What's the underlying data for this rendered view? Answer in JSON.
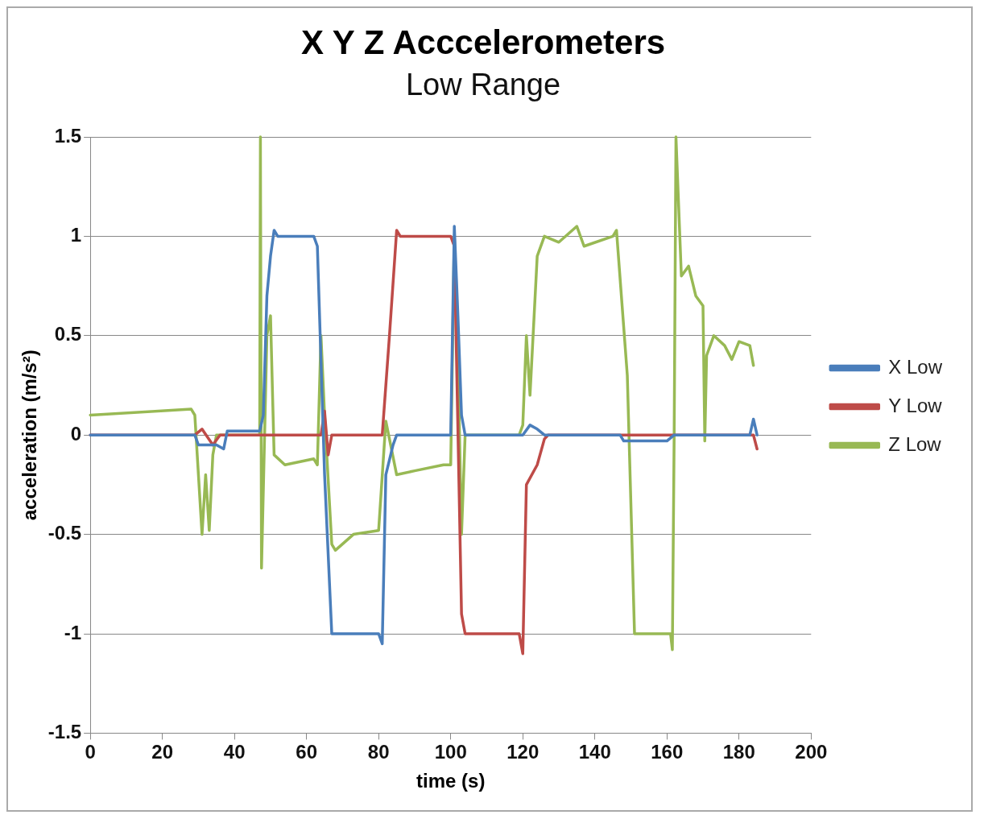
{
  "chart_data": {
    "type": "line",
    "title": "X Y Z Acccelerometers",
    "subtitle": "Low Range",
    "xlabel": "time (s)",
    "ylabel": "acceleration (m/s²)",
    "xlim": [
      0,
      200
    ],
    "xticks": [
      0,
      20,
      40,
      60,
      80,
      100,
      120,
      140,
      160,
      180,
      200
    ],
    "ylim": [
      -1.5,
      1.5
    ],
    "yticks": [
      -1.5,
      -1,
      -0.5,
      0,
      0.5,
      1,
      1.5
    ],
    "grid": "y",
    "legend": "right",
    "marker": "none",
    "line_style": "solid",
    "series": [
      {
        "name": "X Low",
        "color": "#4a7ebb",
        "x": [
          0,
          29,
          30,
          33,
          35,
          37,
          38,
          45,
          47,
          48,
          49,
          50,
          51,
          52,
          62,
          63,
          65,
          67,
          68,
          80,
          81,
          82,
          84,
          85,
          100,
          101,
          102,
          103,
          104,
          120,
          122,
          124,
          126,
          147,
          148,
          160,
          162,
          183,
          184,
          185
        ],
        "values": [
          0,
          0,
          -0.05,
          -0.05,
          -0.05,
          -0.07,
          0.02,
          0.02,
          0.02,
          0.1,
          0.7,
          0.9,
          1.03,
          1,
          1,
          0.95,
          -0.2,
          -1,
          -1,
          -1,
          -1.05,
          -0.2,
          -0.05,
          0,
          0,
          1.05,
          0.6,
          0.1,
          0,
          0,
          0.05,
          0.03,
          0,
          0,
          -0.03,
          -0.03,
          0,
          0,
          0.08,
          0
        ]
      },
      {
        "name": "Y Low",
        "color": "#be4b48",
        "x": [
          0,
          29,
          31,
          34,
          36,
          47,
          64,
          65,
          66,
          67,
          80,
          81,
          83,
          85,
          86,
          100,
          101,
          103,
          104,
          119,
          120,
          121,
          124,
          126,
          127,
          184,
          185
        ],
        "values": [
          0,
          0,
          0.03,
          -0.05,
          0,
          0,
          0,
          0.12,
          -0.1,
          0,
          0,
          0,
          0.5,
          1.03,
          1,
          1,
          0.95,
          -0.9,
          -1,
          -1,
          -1.1,
          -0.25,
          -0.15,
          -0.02,
          0,
          0,
          -0.07
        ]
      },
      {
        "name": "Z Low",
        "color": "#98b954",
        "x": [
          0,
          28,
          29,
          31,
          32,
          33,
          34,
          35,
          37,
          47,
          47.2,
          47.5,
          49,
          50,
          51,
          54,
          62,
          63,
          64,
          65,
          67,
          68,
          73,
          80,
          82,
          85,
          90,
          98,
          100,
          101,
          102,
          103,
          104,
          119,
          120,
          121,
          122,
          124,
          126,
          130,
          135,
          137,
          145,
          146,
          149,
          151,
          161,
          161.5,
          162,
          162.5,
          164,
          166,
          168,
          170,
          170.5,
          171,
          173,
          176,
          178,
          180,
          183,
          184
        ],
        "values": [
          0.1,
          0.13,
          0.1,
          -0.5,
          -0.2,
          -0.48,
          -0.1,
          0,
          0,
          0,
          1.5,
          -0.67,
          0.5,
          0.6,
          -0.1,
          -0.15,
          -0.12,
          -0.15,
          0.5,
          0.1,
          -0.55,
          -0.58,
          -0.5,
          -0.48,
          0.07,
          -0.2,
          -0.18,
          -0.15,
          -0.15,
          1,
          0.4,
          -0.5,
          0,
          0,
          0.05,
          0.5,
          0.2,
          0.9,
          1,
          0.97,
          1.05,
          0.95,
          1,
          1.03,
          0.3,
          -1,
          -1,
          -1.08,
          0,
          1.5,
          0.8,
          0.85,
          0.7,
          0.65,
          -0.03,
          0.4,
          0.5,
          0.45,
          0.38,
          0.47,
          0.45,
          0.35
        ]
      }
    ]
  }
}
